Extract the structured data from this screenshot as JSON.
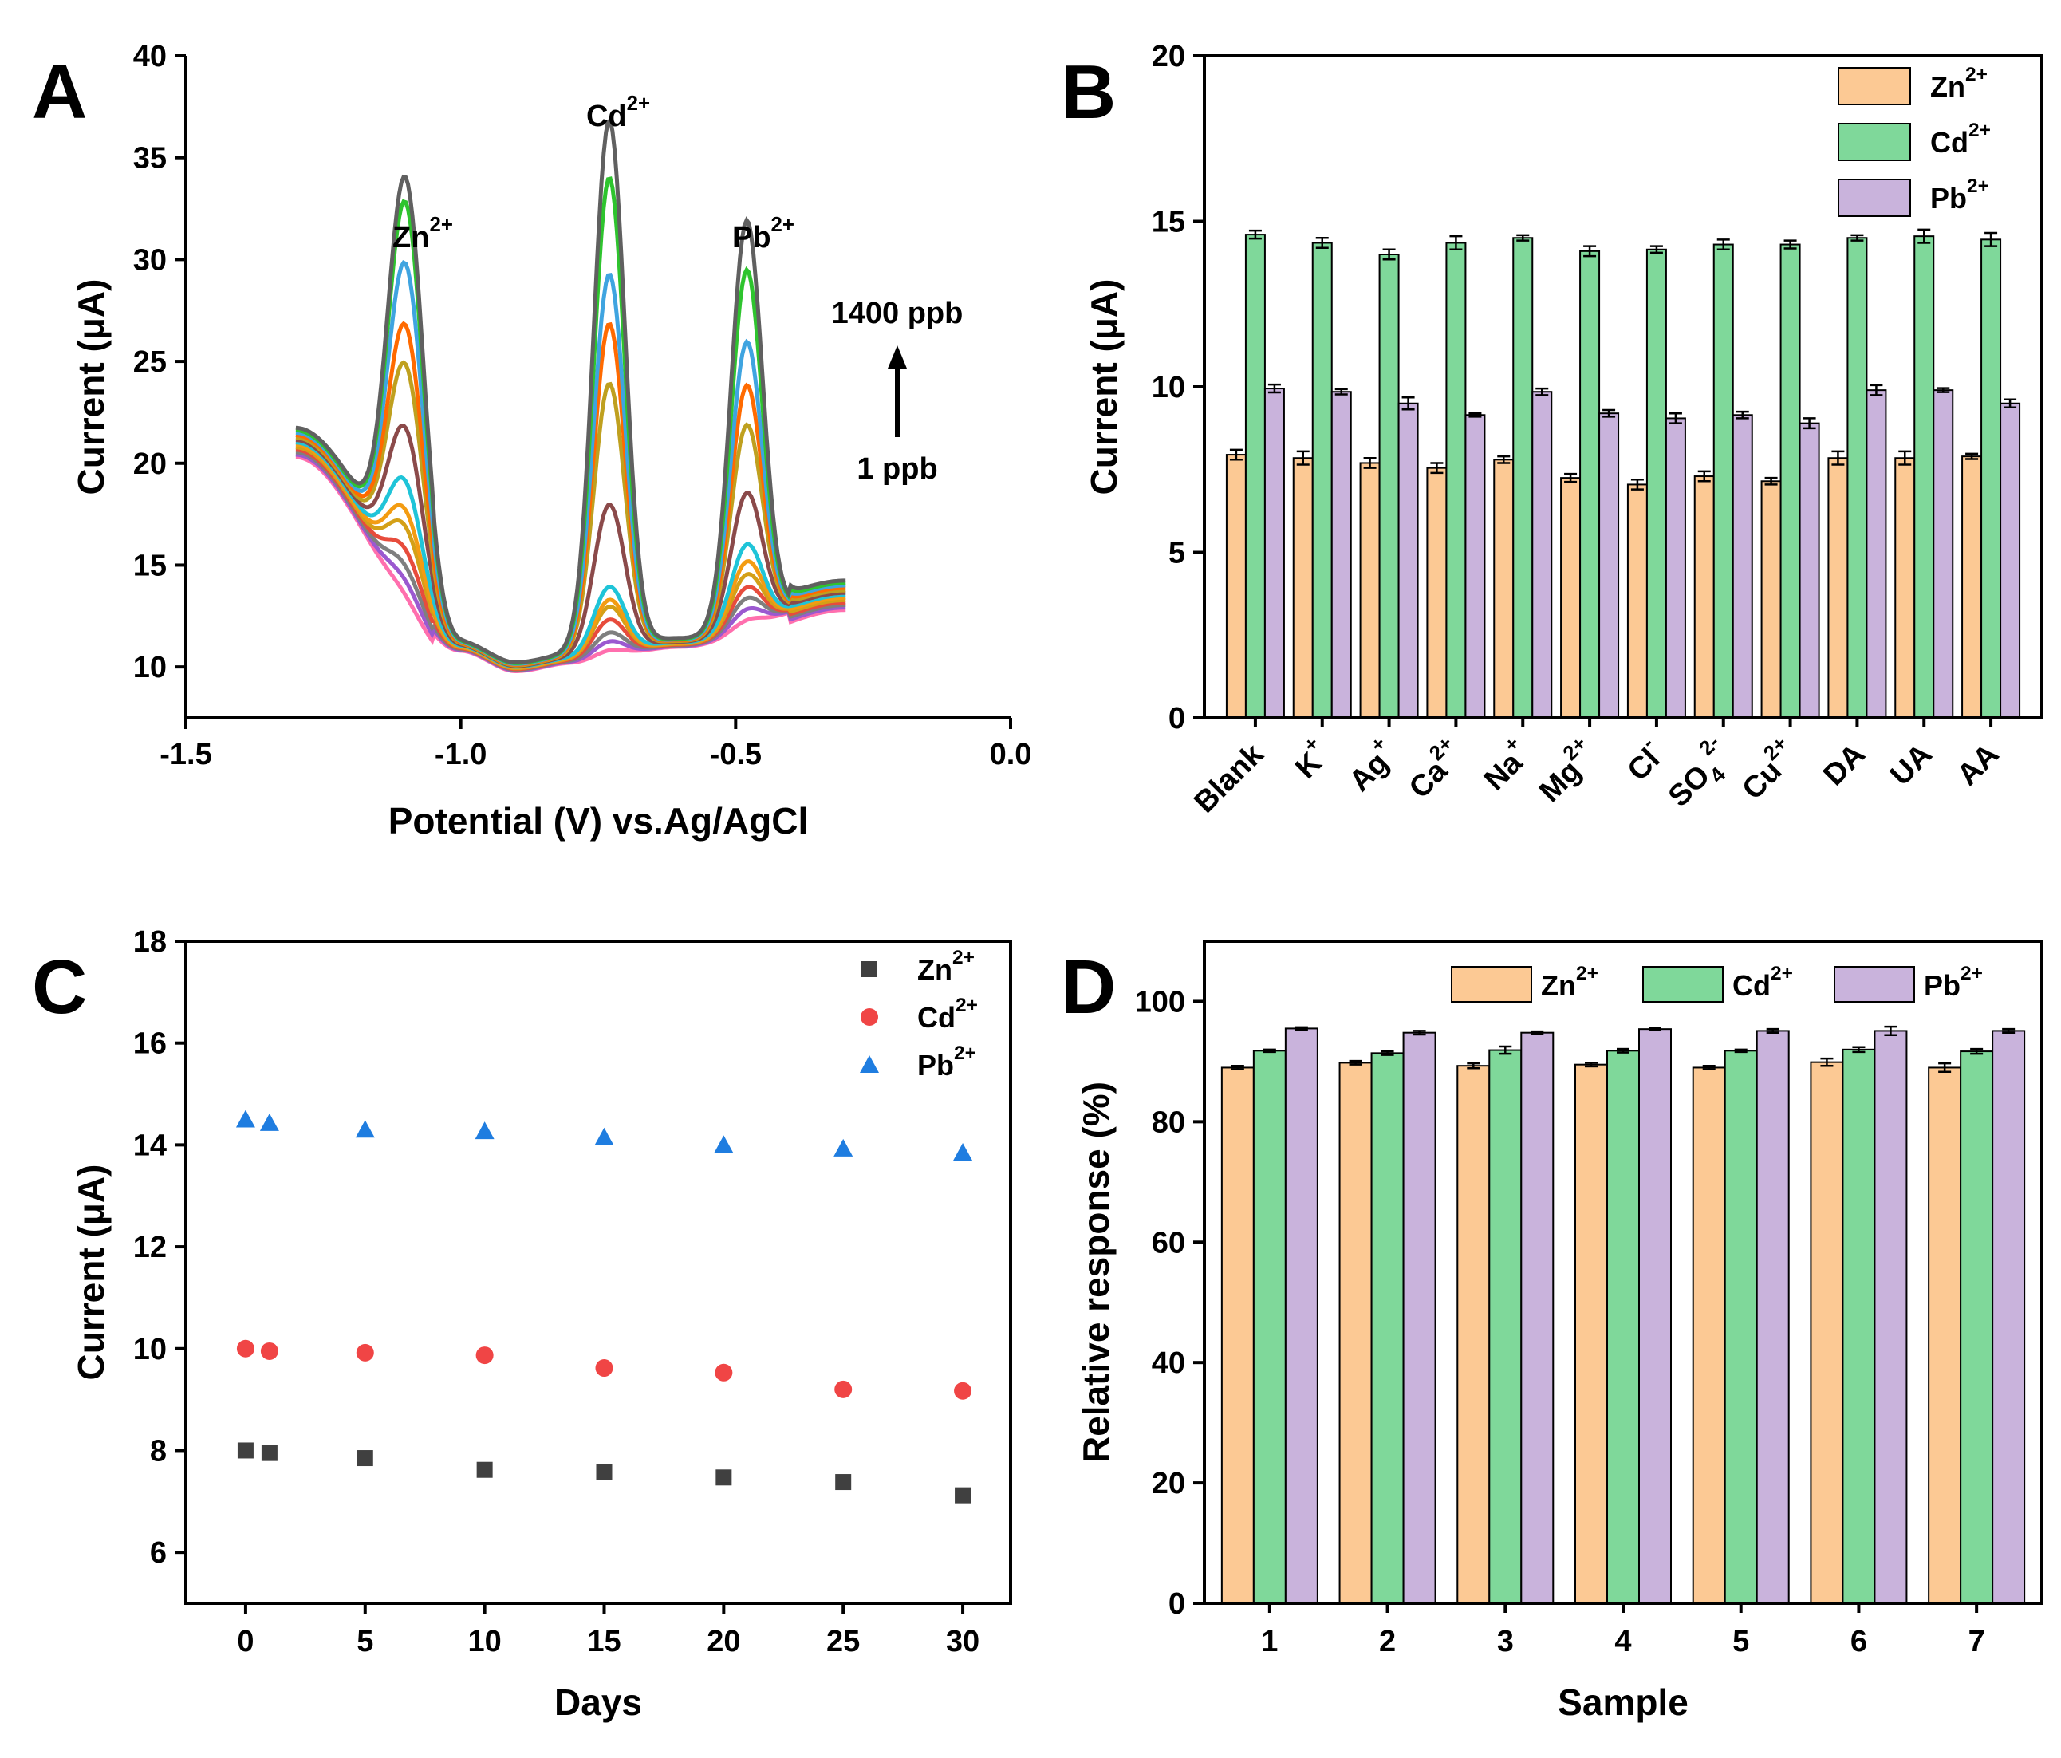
{
  "figure": {
    "panels": [
      "A",
      "B",
      "C",
      "D"
    ]
  },
  "chart_data": [
    {
      "panel": "A",
      "type": "line",
      "xlabel": "Potential (V) vs.Ag/AgCl",
      "ylabel": "Current (μA)",
      "xlim": [
        -1.5,
        0.0
      ],
      "ylim": [
        7.5,
        40
      ],
      "xticks": [
        -1.5,
        -1.0,
        -0.5,
        0.0
      ],
      "xtick_labels": [
        "-1.5",
        "-1.0",
        "-0.5",
        "0.0"
      ],
      "yticks": [
        10,
        15,
        20,
        25,
        30,
        35,
        40
      ],
      "annotations": {
        "zn": "Zn",
        "zn_sup": "2+",
        "cd": "Cd",
        "cd_sup": "2+",
        "pb": "Pb",
        "pb_sup": "2+",
        "high": "1400 ppb",
        "low": "1 ppb"
      },
      "baseline_params": {
        "x": [
          -1.3,
          -1.0,
          -0.9,
          -0.8,
          -0.6,
          -0.3
        ],
        "y": [
          21,
          11,
          10,
          10.4,
          11.2,
          13.5
        ]
      },
      "peak_centers": {
        "zn": -1.1,
        "cd": -0.73,
        "pb": -0.48
      },
      "series": [
        {
          "name": "c1",
          "color": "#ff6fae",
          "peaks": [
            0.6,
            0.4,
            0.5
          ]
        },
        {
          "name": "c2",
          "color": "#9b59d0",
          "peaks": [
            1.2,
            0.8,
            1.0
          ]
        },
        {
          "name": "c3",
          "color": "#7f7f7f",
          "peaks": [
            1.8,
            1.2,
            1.5
          ]
        },
        {
          "name": "c4",
          "color": "#e74c3c",
          "peaks": [
            2.5,
            1.8,
            2.0
          ]
        },
        {
          "name": "c5",
          "color": "#d4a017",
          "peaks": [
            3.5,
            2.4,
            2.6
          ]
        },
        {
          "name": "c6",
          "color": "#f39c12",
          "peaks": [
            4.2,
            2.7,
            3.2
          ]
        },
        {
          "name": "c7",
          "color": "#1fc4d8",
          "peaks": [
            5.5,
            3.3,
            4.0
          ]
        },
        {
          "name": "c8",
          "color": "#8b4a4a",
          "peaks": [
            8.0,
            7.3,
            6.5
          ]
        },
        {
          "name": "c9",
          "color": "#bfa01f",
          "peaks": [
            11.0,
            13.2,
            9.8
          ]
        },
        {
          "name": "c10",
          "color": "#ff6a00",
          "peaks": [
            12.8,
            16.1,
            11.7
          ]
        },
        {
          "name": "c11",
          "color": "#3fa4e0",
          "peaks": [
            15.7,
            18.5,
            13.8
          ]
        },
        {
          "name": "c12",
          "color": "#2ec42e",
          "peaks": [
            18.6,
            23.2,
            17.3
          ]
        },
        {
          "name": "c13",
          "color": "#606060",
          "peaks": [
            19.7,
            26.0,
            19.7
          ]
        }
      ]
    },
    {
      "panel": "B",
      "type": "bar",
      "ylabel": "Current (μA)",
      "ylim": [
        0,
        20
      ],
      "yticks": [
        0,
        5,
        10,
        15,
        20
      ],
      "categories": [
        {
          "main": "Blank",
          "sup": "",
          "sub": ""
        },
        {
          "main": "K",
          "sup": "+",
          "sub": ""
        },
        {
          "main": "Ag",
          "sup": "+",
          "sub": ""
        },
        {
          "main": "Ca",
          "sup": "2+",
          "sub": ""
        },
        {
          "main": "Na",
          "sup": "+",
          "sub": ""
        },
        {
          "main": "Mg",
          "sup": "2+",
          "sub": ""
        },
        {
          "main": "Cl",
          "sup": "-",
          "sub": ""
        },
        {
          "main": "SO",
          "sup": "2-",
          "sub": "4"
        },
        {
          "main": "Cu",
          "sup": "2+",
          "sub": ""
        },
        {
          "main": "DA",
          "sup": "",
          "sub": ""
        },
        {
          "main": "UA",
          "sup": "",
          "sub": ""
        },
        {
          "main": "AA",
          "sup": "",
          "sub": ""
        }
      ],
      "series": [
        {
          "name": "Zn",
          "sup": "2+",
          "color": "#fcc994",
          "values": [
            7.95,
            7.85,
            7.7,
            7.55,
            7.8,
            7.25,
            7.05,
            7.3,
            7.15,
            7.85,
            7.85,
            7.9
          ],
          "errors": [
            0.15,
            0.2,
            0.15,
            0.15,
            0.1,
            0.12,
            0.15,
            0.15,
            0.1,
            0.2,
            0.2,
            0.08
          ]
        },
        {
          "name": "Cd",
          "sup": "2+",
          "color": "#7fd89a",
          "values": [
            14.6,
            14.35,
            14.0,
            14.35,
            14.5,
            14.1,
            14.15,
            14.3,
            14.3,
            14.5,
            14.55,
            14.45
          ],
          "errors": [
            0.12,
            0.15,
            0.15,
            0.2,
            0.08,
            0.15,
            0.1,
            0.15,
            0.12,
            0.08,
            0.2,
            0.2
          ]
        },
        {
          "name": "Pb",
          "sup": "2+",
          "color": "#c9b3dc",
          "values": [
            9.95,
            9.85,
            9.5,
            9.15,
            9.85,
            9.2,
            9.05,
            9.15,
            8.9,
            9.9,
            9.9,
            9.5
          ],
          "errors": [
            0.12,
            0.08,
            0.18,
            0.05,
            0.1,
            0.1,
            0.15,
            0.1,
            0.15,
            0.15,
            0.06,
            0.12
          ]
        }
      ],
      "legend": "top-right"
    },
    {
      "panel": "C",
      "type": "scatter",
      "xlabel": "Days",
      "ylabel": "Current (μA)",
      "xlim": [
        -2.5,
        32
      ],
      "ylim": [
        5,
        18
      ],
      "xticks": [
        0,
        5,
        10,
        15,
        20,
        25,
        30
      ],
      "yticks": [
        6,
        8,
        10,
        12,
        14,
        16,
        18
      ],
      "x": [
        0,
        1,
        5,
        10,
        15,
        20,
        25,
        30
      ],
      "series": [
        {
          "name": "Zn",
          "sup": "2+",
          "color": "#404040",
          "marker": "square",
          "values": [
            8.0,
            7.95,
            7.85,
            7.62,
            7.58,
            7.47,
            7.38,
            7.12
          ]
        },
        {
          "name": "Cd",
          "sup": "2+",
          "color": "#f04545",
          "marker": "circle",
          "values": [
            10.0,
            9.95,
            9.92,
            9.87,
            9.62,
            9.53,
            9.2,
            9.17
          ]
        },
        {
          "name": "Pb",
          "sup": "2+",
          "color": "#1f7de0",
          "marker": "triangle",
          "values": [
            14.5,
            14.43,
            14.3,
            14.27,
            14.15,
            14.0,
            13.93,
            13.85
          ]
        }
      ],
      "legend": "top-right"
    },
    {
      "panel": "D",
      "type": "bar",
      "xlabel": "Sample",
      "ylabel": "Relative response (%)",
      "ylim": [
        0,
        110
      ],
      "yticks": [
        0,
        20,
        40,
        60,
        80,
        100
      ],
      "categories": [
        "1",
        "2",
        "3",
        "4",
        "5",
        "6",
        "7"
      ],
      "series": [
        {
          "name": "Zn",
          "sup": "2+",
          "color": "#fcc994",
          "values": [
            89.0,
            89.8,
            89.3,
            89.5,
            89.0,
            89.9,
            89.0
          ],
          "errors": [
            0.3,
            0.3,
            0.4,
            0.3,
            0.3,
            0.6,
            0.7
          ]
        },
        {
          "name": "Cd",
          "sup": "2+",
          "color": "#7fd89a",
          "values": [
            91.8,
            91.4,
            91.9,
            91.8,
            91.8,
            92.0,
            91.7
          ],
          "errors": [
            0.2,
            0.3,
            0.6,
            0.3,
            0.2,
            0.4,
            0.4
          ]
        },
        {
          "name": "Pb",
          "sup": "2+",
          "color": "#c9b3dc",
          "values": [
            95.5,
            94.8,
            94.8,
            95.4,
            95.1,
            95.1,
            95.1
          ],
          "errors": [
            0.2,
            0.3,
            0.2,
            0.2,
            0.3,
            0.7,
            0.3
          ]
        }
      ],
      "legend": "top"
    }
  ]
}
